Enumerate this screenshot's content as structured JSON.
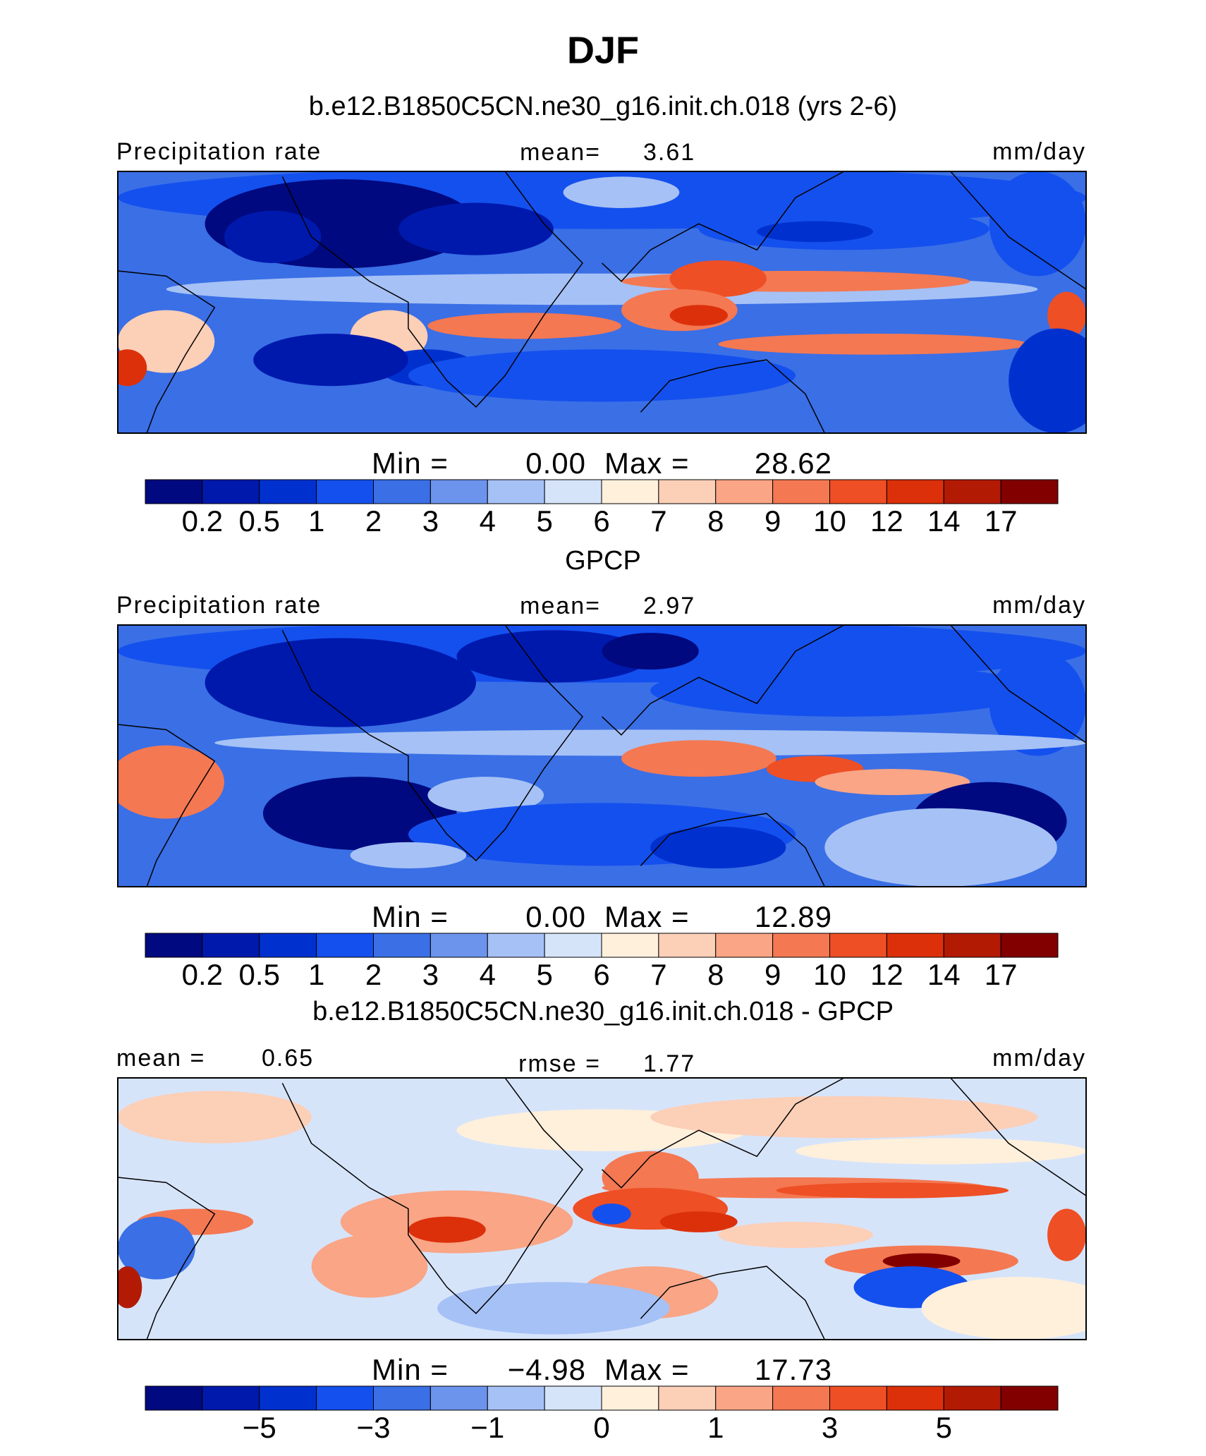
{
  "title": "DJF",
  "colors": [
    "#00097f",
    "#0019ad",
    "#0031cf",
    "#1450ee",
    "#3a6fe6",
    "#6c94ec",
    "#a6c1f5",
    "#d6e4fa",
    "#fff0dc",
    "#fccfb7",
    "#f9a586",
    "#f47852",
    "#ee4f25",
    "#dc300b",
    "#b31a04",
    "#820000"
  ],
  "panels": [
    {
      "title": "b.e12.B1850C5CN.ne30_g16.init.ch.018 (yrs 2-6)",
      "left": "Precipitation rate",
      "center": "mean=",
      "center_value": "3.61",
      "units": "mm/day",
      "min_label": "Min  =",
      "min_value": "0.00",
      "max_label": "Max  =",
      "max_value": "28.62",
      "colorbar_labels": [
        "0.2",
        "0.5",
        "1",
        "2",
        "3",
        "4",
        "5",
        "6",
        "7",
        "8",
        "9",
        "10",
        "12",
        "14",
        "17"
      ]
    },
    {
      "title": "GPCP",
      "left": "Precipitation rate",
      "center": "mean=",
      "center_value": "2.97",
      "units": "mm/day",
      "min_label": "Min  =",
      "min_value": "0.00",
      "max_label": "Max  =",
      "max_value": "12.89",
      "colorbar_labels": [
        "0.2",
        "0.5",
        "1",
        "2",
        "3",
        "4",
        "5",
        "6",
        "7",
        "8",
        "9",
        "10",
        "12",
        "14",
        "17"
      ]
    },
    {
      "title": "b.e12.B1850C5CN.ne30_g16.init.ch.018 - GPCP",
      "left": "mean =",
      "left_value": "0.65",
      "center": "rmse =",
      "center_value": "1.77",
      "units": "mm/day",
      "min_label": "Min  =",
      "min_value": "−4.98",
      "max_label": "Max  =",
      "max_value": "17.73",
      "colorbar_labels": [
        null,
        "−5",
        null,
        "−3",
        null,
        "−1",
        null,
        "0",
        null,
        "1",
        null,
        "3",
        null,
        "5",
        null
      ]
    }
  ]
}
